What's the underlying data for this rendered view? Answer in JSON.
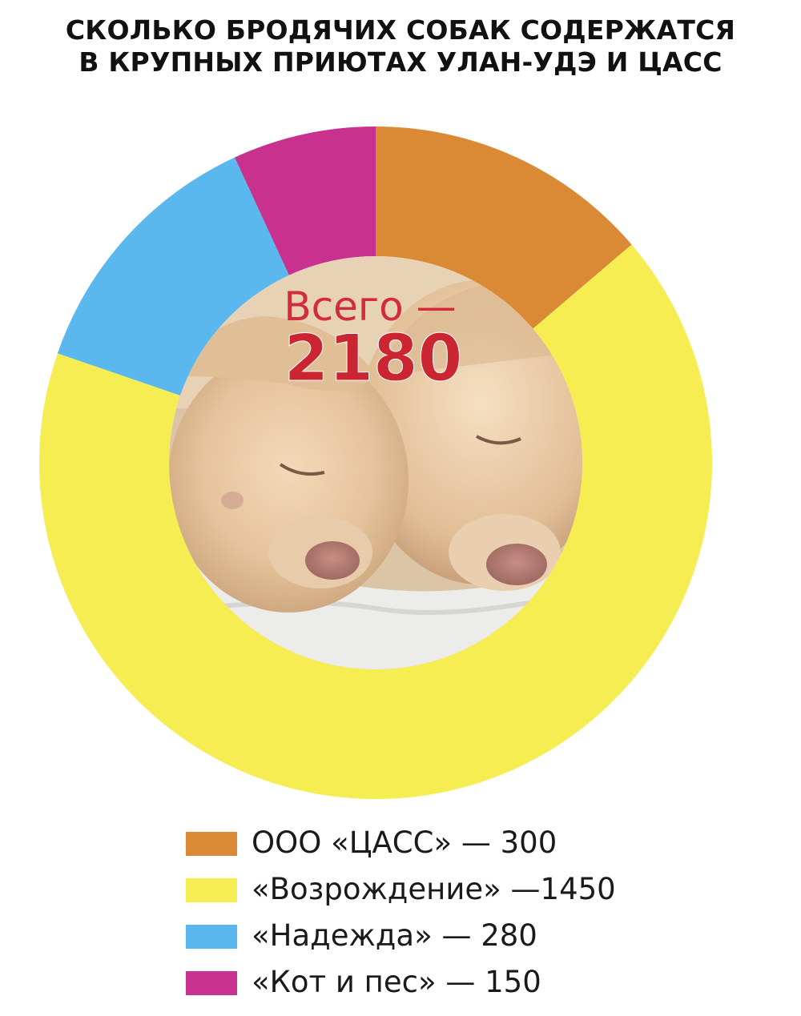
{
  "title": {
    "line1": "СКОЛЬКО БРОДЯЧИХ СОБАК СОДЕРЖАТСЯ",
    "line2": "В КРУПНЫХ ПРИЮТАХ УЛАН-УДЭ И ЦАСС"
  },
  "center": {
    "label": "Всего —",
    "total": "2180",
    "photo": "sleeping-puppies-photo"
  },
  "legend": {
    "items": [
      {
        "label": "ООО «ЦАСС» — 300",
        "color": "#DA8A35"
      },
      {
        "label": "«Возрождение» —1450",
        "color": "#F5ED52"
      },
      {
        "label": "«Надежда» — 280",
        "color": "#5BB8EE"
      },
      {
        "label": "«Кот и пес» — 150",
        "color": "#C8318E"
      }
    ]
  },
  "chart_data": {
    "type": "pie",
    "title": "СКОЛЬКО БРОДЯЧИХ СОБАК СОДЕРЖАТСЯ В КРУПНЫХ ПРИЮТАХ УЛАН-УДЭ И ЦАСС",
    "categories": [
      "ООО «ЦАСС»",
      "«Возрождение»",
      "«Надежда»",
      "«Кот и пес»"
    ],
    "values": [
      300,
      1450,
      280,
      150
    ],
    "colors": [
      "#DA8A35",
      "#F5ED52",
      "#5BB8EE",
      "#C8318E"
    ],
    "total": 2180,
    "legend": "bottom"
  }
}
